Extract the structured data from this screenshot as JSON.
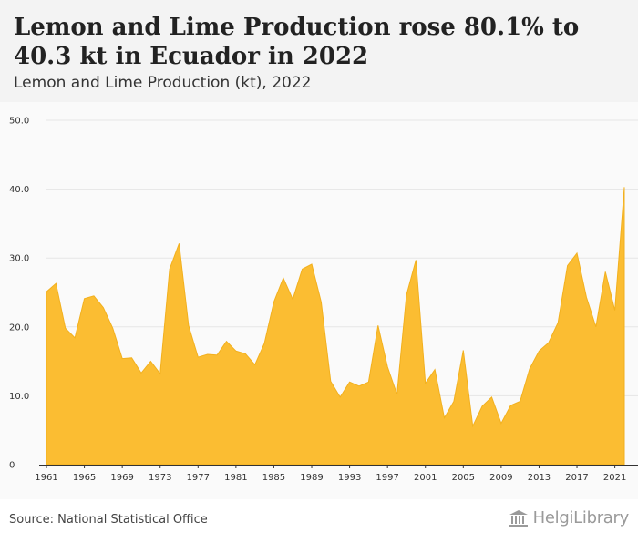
{
  "header": {
    "title": "Lemon and Lime Production rose 80.1% to 40.3 kt in Ecuador in 2022",
    "subtitle": "Lemon and Lime Production (kt), 2022"
  },
  "footer": {
    "source": "Source: National Statistical Office",
    "brand": "HelgiLibrary",
    "brand_icon": "building-columns-icon"
  },
  "colors": {
    "area_fill": "#fbbd32",
    "area_line": "#f2b01e",
    "grid": "#e6e6e6",
    "header_bg": "#f3f3f3"
  },
  "chart_data": {
    "type": "area",
    "x": [
      1961,
      1962,
      1963,
      1964,
      1965,
      1966,
      1967,
      1968,
      1969,
      1970,
      1971,
      1972,
      1973,
      1974,
      1975,
      1976,
      1977,
      1978,
      1979,
      1980,
      1981,
      1982,
      1983,
      1984,
      1985,
      1986,
      1987,
      1988,
      1989,
      1990,
      1991,
      1992,
      1993,
      1994,
      1995,
      1996,
      1997,
      1998,
      1999,
      2000,
      2001,
      2002,
      2003,
      2004,
      2005,
      2006,
      2007,
      2008,
      2009,
      2010,
      2011,
      2012,
      2013,
      2014,
      2015,
      2016,
      2017,
      2018,
      2019,
      2020,
      2021,
      2022
    ],
    "values": [
      25.1,
      26.3,
      19.8,
      18.4,
      24.1,
      24.5,
      22.8,
      19.8,
      15.4,
      15.5,
      13.3,
      15.0,
      13.2,
      28.4,
      32.1,
      20.2,
      15.6,
      16.0,
      15.9,
      17.9,
      16.5,
      16.1,
      14.5,
      17.6,
      23.6,
      27.1,
      24.0,
      28.4,
      29.1,
      23.6,
      12.1,
      9.8,
      12.0,
      11.4,
      12.0,
      20.2,
      14.2,
      10.2,
      24.6,
      29.7,
      11.8,
      13.8,
      6.8,
      9.2,
      16.6,
      5.6,
      8.5,
      9.8,
      6.0,
      8.6,
      9.2,
      13.9,
      16.5,
      17.7,
      20.6,
      28.9,
      30.7,
      24.3,
      20.0,
      28.0,
      22.4,
      40.3
    ],
    "title": "",
    "xlabel": "",
    "ylabel": "",
    "ylim": [
      0,
      50
    ],
    "xlim": [
      1961,
      2022
    ],
    "yticks": [
      0,
      10.0,
      20.0,
      30.0,
      40.0,
      50.0
    ],
    "ytick_labels": [
      "0",
      "10.0",
      "20.0",
      "30.0",
      "40.0",
      "50.0"
    ],
    "xticks": [
      1961,
      1965,
      1969,
      1973,
      1977,
      1981,
      1985,
      1989,
      1993,
      1997,
      2001,
      2005,
      2009,
      2013,
      2017,
      2021
    ],
    "grid": true,
    "legend": "none"
  }
}
